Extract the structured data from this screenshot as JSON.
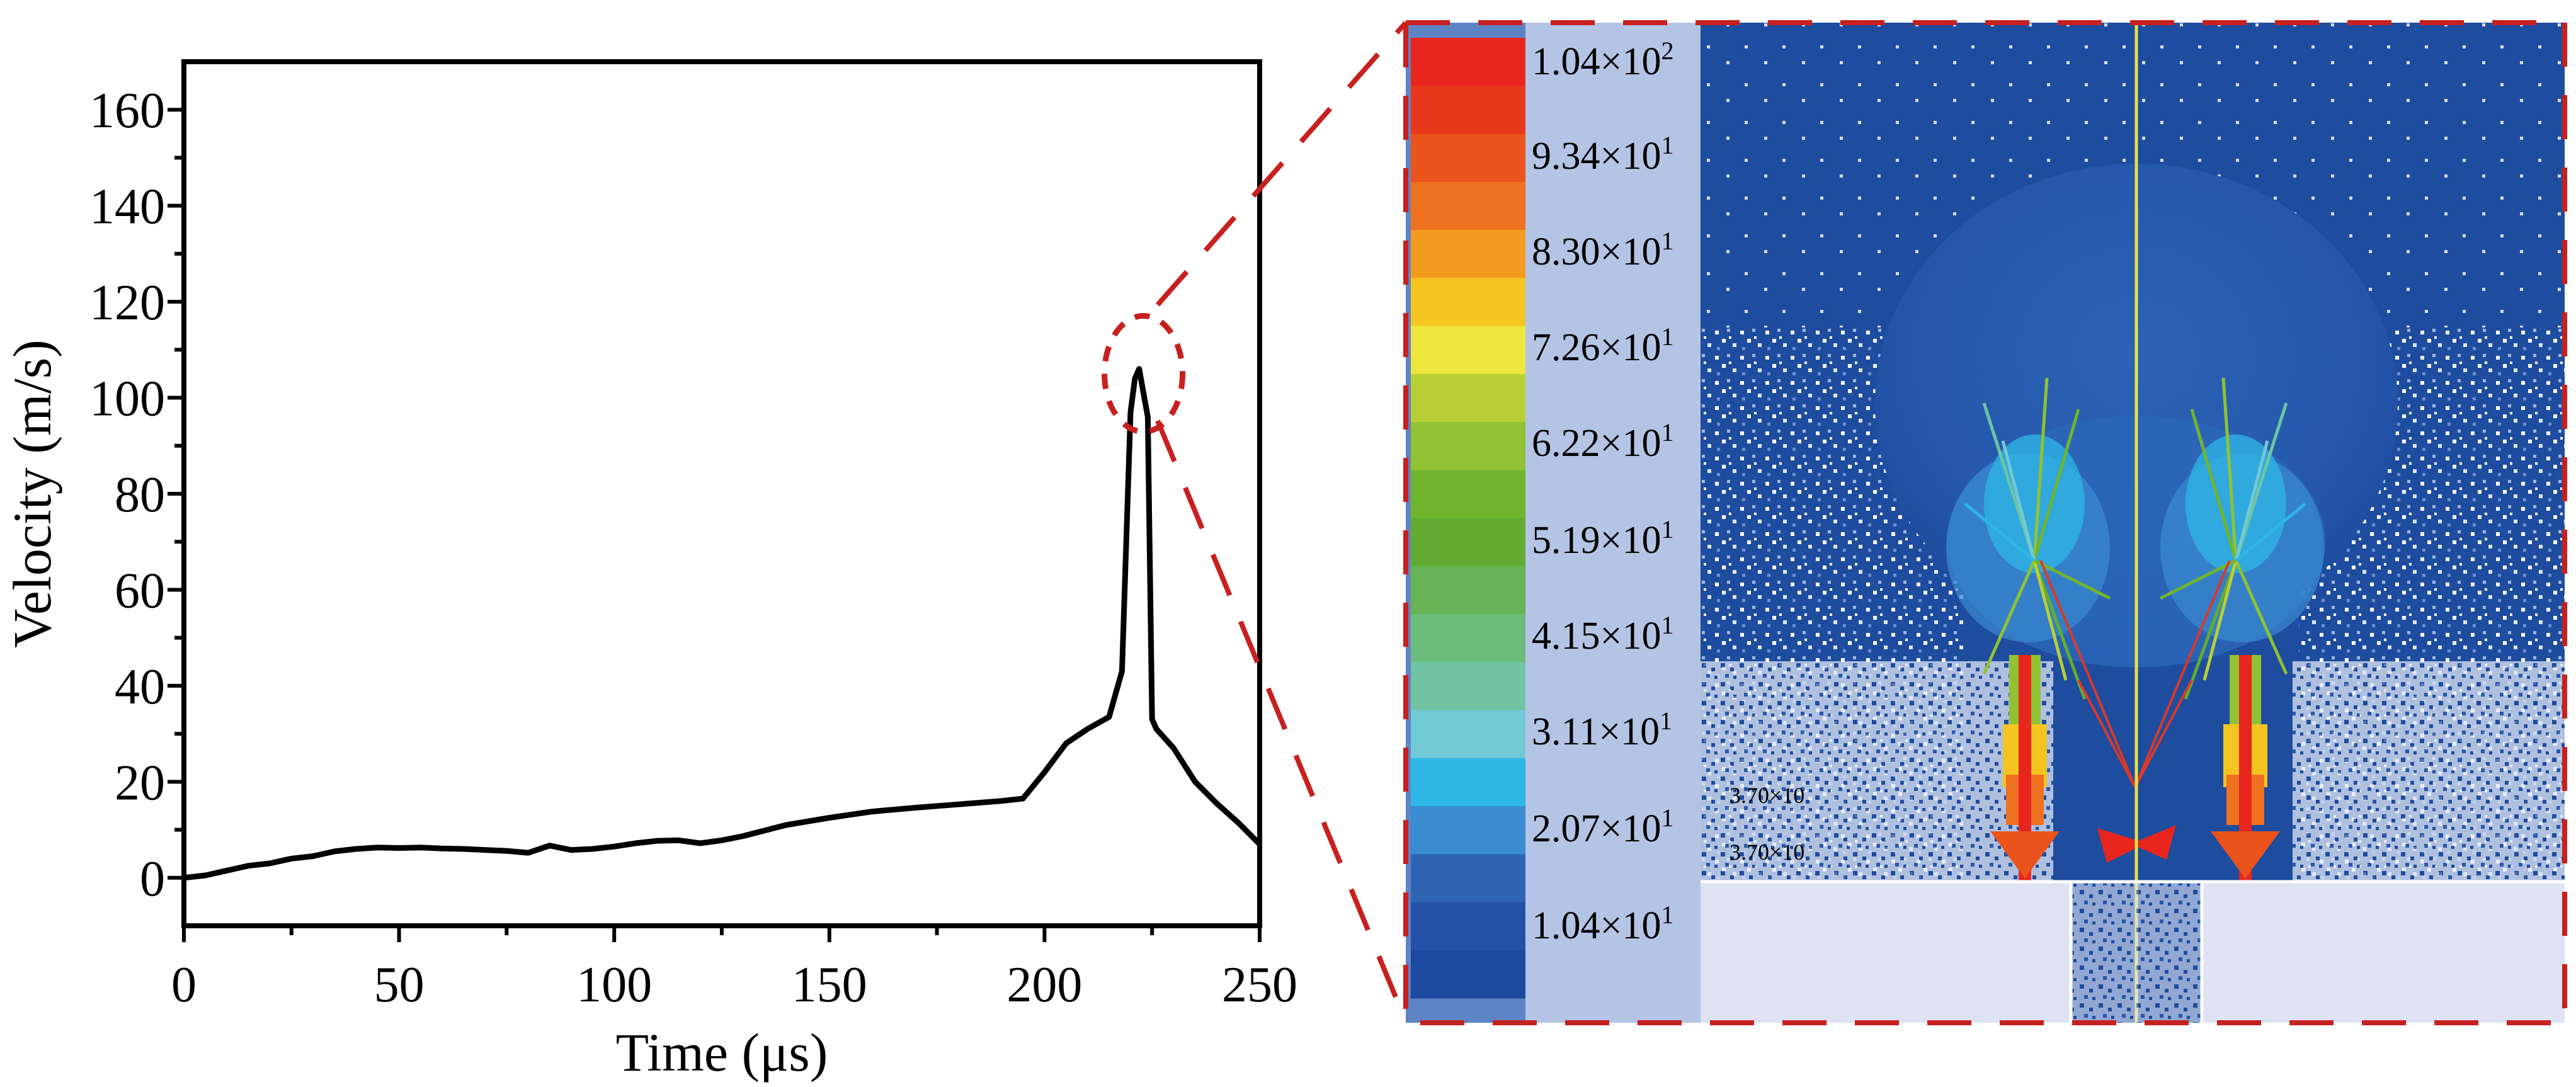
{
  "chart_data": {
    "type": "line",
    "xlabel": "Time (μs)",
    "ylabel": "Velocity (m/s)",
    "xlim": [
      0,
      250
    ],
    "ylim": [
      -10,
      170
    ],
    "xticks": [
      0,
      50,
      100,
      150,
      200,
      250
    ],
    "yticks": [
      0,
      20,
      40,
      60,
      80,
      100,
      120,
      140,
      160
    ],
    "xtick_labels": [
      "0",
      "50",
      "100",
      "150",
      "200",
      "250"
    ],
    "ytick_labels": [
      "0",
      "20",
      "40",
      "60",
      "80",
      "100",
      "120",
      "140",
      "160"
    ],
    "grid": false,
    "series": [
      {
        "x": [
          0,
          5,
          10,
          15,
          20,
          25,
          30,
          35,
          40,
          45,
          50,
          55,
          60,
          65,
          70,
          75,
          80,
          85,
          90,
          95,
          100,
          105,
          110,
          115,
          120,
          125,
          130,
          140,
          150,
          160,
          170,
          180,
          190,
          195,
          200,
          205,
          210,
          215,
          218,
          220,
          221,
          222,
          223,
          224,
          225,
          226,
          230,
          235,
          240,
          245,
          250
        ],
        "y": [
          0,
          0.5,
          1.5,
          2.5,
          3,
          4,
          4.5,
          5.5,
          6,
          6.3,
          6.2,
          6.3,
          6.1,
          6,
          5.8,
          5.6,
          5.2,
          6.7,
          5.8,
          6,
          6.5,
          7.2,
          7.7,
          7.8,
          7.2,
          7.8,
          8.7,
          11,
          12.5,
          13.8,
          14.6,
          15.3,
          16,
          16.5,
          22,
          28,
          31,
          33.5,
          43,
          97,
          104,
          106,
          101,
          96,
          33,
          31,
          27,
          20,
          15.5,
          11.5,
          7
        ]
      }
    ],
    "annotations": [
      {
        "type": "circle",
        "center_data": [
          223,
          105
        ]
      }
    ]
  },
  "inset": {
    "colorbar_labels": [
      {
        "mantissa": "1.04×10",
        "exp": "2"
      },
      {
        "mantissa": "9.34×10",
        "exp": "1"
      },
      {
        "mantissa": "8.30×10",
        "exp": "1"
      },
      {
        "mantissa": "7.26×10",
        "exp": "1"
      },
      {
        "mantissa": "6.22×10",
        "exp": "1"
      },
      {
        "mantissa": "5.19×10",
        "exp": "1"
      },
      {
        "mantissa": "4.15×10",
        "exp": "1"
      },
      {
        "mantissa": "3.11×10",
        "exp": "1"
      },
      {
        "mantissa": "2.07×10",
        "exp": "1"
      },
      {
        "mantissa": "1.04×10",
        "exp": "1"
      }
    ],
    "colorbar_colors": [
      "#e8261e",
      "#e8381c",
      "#ea531c",
      "#ef7220",
      "#f39b1f",
      "#f4c520",
      "#ede63c",
      "#b8d036",
      "#90c233",
      "#71b52e",
      "#63ac32",
      "#66b455",
      "#6cbc7c",
      "#70c4a3",
      "#72c9d6",
      "#2fb7e6",
      "#3a8bd0",
      "#2e64b2",
      "#2450a6",
      "#1e49a0"
    ],
    "small_labels": [
      "3.70×10",
      "3.70×10"
    ],
    "background_color": "#1e4c9e",
    "frame_color": "#d42a2a"
  }
}
